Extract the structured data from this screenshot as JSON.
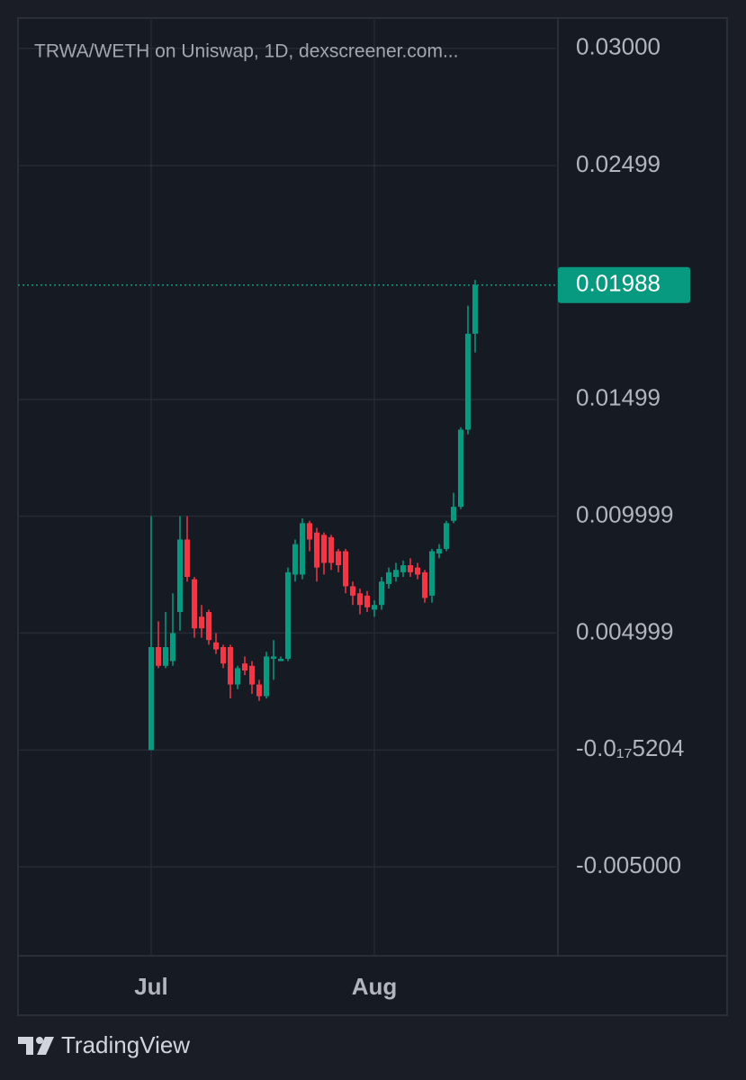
{
  "chart_data": {
    "type": "candlestick",
    "title": "TRWA/WETH on Uniswap, 1D, dexscreener.com...",
    "categories": [
      "Jul",
      null,
      null,
      null,
      null,
      null,
      null,
      null,
      null,
      null,
      null,
      null,
      null,
      null,
      null,
      null,
      null,
      null,
      null,
      null,
      null,
      null,
      null,
      null,
      null,
      null,
      null,
      null,
      null,
      null,
      null,
      "Aug",
      null,
      null,
      null,
      null,
      null,
      null,
      null,
      null,
      null,
      null,
      null,
      null,
      null,
      null
    ],
    "open": [
      0,
      0.0044,
      0.0036,
      0.0038,
      0.0059,
      0.009,
      0.0073,
      0.0057,
      0.0059,
      0.0046,
      0.0044,
      0.0044,
      0.0028,
      0.0037,
      0.0036,
      0.0028,
      0.0023,
      0.0039,
      0.0038,
      0.0039,
      0.0075,
      0.0075,
      0.0097,
      0.0093,
      0.0092,
      0.0091,
      0.0085,
      0.0085,
      0.007,
      0.0067,
      0.0066,
      0.006,
      0.0062,
      0.0071,
      0.0074,
      0.0076,
      0.0079,
      0.0078,
      0.0076,
      0.0066,
      0.0084,
      0.0086,
      0.0098,
      0.0104,
      0.0137,
      0.0178
    ],
    "high": [
      0.01,
      0.0055,
      0.0059,
      0.0067,
      0.01,
      0.01,
      0.0074,
      0.0062,
      0.006,
      0.005,
      0.0045,
      0.0045,
      0.0036,
      0.004,
      0.0038,
      0.003,
      0.0042,
      0.0047,
      0.004,
      0.0078,
      0.009,
      0.0099,
      0.0098,
      0.0095,
      0.0093,
      0.0092,
      0.0086,
      0.0086,
      0.0072,
      0.0069,
      0.0068,
      0.0064,
      0.0074,
      0.0078,
      0.008,
      0.0081,
      0.0082,
      0.008,
      0.0077,
      0.0086,
      0.0088,
      0.0098,
      0.011,
      0.0138,
      0.019,
      0.0201
    ],
    "low": [
      0,
      0.0035,
      0.0035,
      0.0036,
      0.0051,
      0.0072,
      0.0048,
      0.0048,
      0.0045,
      0.0041,
      0.0035,
      0.0022,
      0.0026,
      0.0032,
      0.0024,
      0.0021,
      0.0022,
      0.003,
      0.0038,
      0.0038,
      0.0072,
      0.0073,
      0.0085,
      0.0072,
      0.0075,
      0.0077,
      0.0076,
      0.0067,
      0.0062,
      0.0058,
      0.0059,
      0.0057,
      0.006,
      0.0069,
      0.0072,
      0.0074,
      0.0074,
      0.0073,
      0.0063,
      0.0063,
      0.0082,
      0.0085,
      0.0097,
      0.0103,
      0.0135,
      0.017
    ],
    "close": [
      0.0044,
      0.0036,
      0.0044,
      0.005,
      0.009,
      0.0074,
      0.0052,
      0.0052,
      0.0047,
      0.0043,
      0.0037,
      0.0028,
      0.0035,
      0.0034,
      0.0028,
      0.0023,
      0.004,
      0.004,
      0.0039,
      0.0076,
      0.0088,
      0.0097,
      0.009,
      0.0078,
      0.008,
      0.008,
      0.0079,
      0.007,
      0.0066,
      0.0062,
      0.0061,
      0.0062,
      0.0072,
      0.0076,
      0.0077,
      0.0079,
      0.0076,
      0.0075,
      0.0065,
      0.0085,
      0.0086,
      0.0097,
      0.0104,
      0.0137,
      0.0178,
      0.01988
    ],
    "up_color": "#089981",
    "down_color": "#f23645",
    "last_price": 0.01988,
    "ylim": [
      -0.0088,
      0.0313
    ],
    "yticks": [
      {
        "value": 0.03,
        "label": "0.03000"
      },
      0.02499,
      0.01499,
      0.009999,
      0.004999,
      {
        "value": -5.204e-18,
        "label": "-0.0₁₇5204"
      },
      {
        "value": -0.005,
        "label": "-0.005000"
      }
    ],
    "grid": true
  },
  "footer": {
    "brand": "TradingView"
  }
}
